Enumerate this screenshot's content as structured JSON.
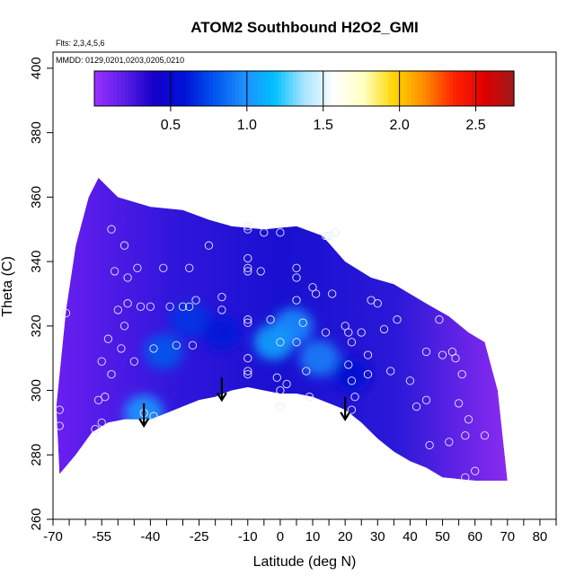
{
  "chart_data": {
    "type": "heatmap",
    "title": "ATOM2 Southbound H2O2_GMI",
    "flights_note": "Flts: 2,3,4,5,6",
    "dates_note": "MMDD: 0129,0201,0203,0205,0210",
    "xlabel": "Latitude (deg N)",
    "ylabel": "Theta (C)",
    "xlim": [
      -70,
      85
    ],
    "ylim": [
      260,
      405
    ],
    "x_ticks": [
      -70,
      -55,
      -40,
      -25,
      -10,
      0,
      10,
      20,
      30,
      40,
      50,
      60,
      70,
      80
    ],
    "x_tick_labels": [
      "-70",
      "-55",
      "-40",
      "-25",
      "-10",
      "0",
      "10",
      "20",
      "30",
      "40",
      "50",
      "60",
      "70",
      "80"
    ],
    "x_minor_ticks": [
      -65,
      -60,
      -50,
      -45,
      -35,
      -30,
      -20,
      -15,
      -5,
      5,
      15,
      25,
      35,
      45,
      55,
      65,
      75,
      85
    ],
    "y_ticks": [
      260,
      280,
      300,
      320,
      340,
      360,
      380,
      400
    ],
    "y_tick_labels": [
      "260",
      "280",
      "300",
      "320",
      "340",
      "360",
      "380",
      "400"
    ],
    "colorbar": {
      "range": [
        0,
        2.75
      ],
      "ticks": [
        0.5,
        1.0,
        1.5,
        2.0,
        2.5
      ],
      "tick_labels": [
        "0.5",
        "1.0",
        "1.5",
        "2.0",
        "2.5"
      ],
      "colors": [
        "#9b30ff",
        "#5a1ee6",
        "#1500c8",
        "#0011d8",
        "#0055ee",
        "#1e90ff",
        "#00bfff",
        "#a8e4ff",
        "#ffffff",
        "#ffffc0",
        "#ffd700",
        "#ff8c00",
        "#ff2400",
        "#e00000",
        "#a01a1a"
      ]
    },
    "field_polygon": [
      [
        -68,
        274
      ],
      [
        -63,
        280
      ],
      [
        -58,
        287
      ],
      [
        -53,
        290
      ],
      [
        -48,
        291
      ],
      [
        -44,
        291
      ],
      [
        -40,
        291
      ],
      [
        -35,
        293
      ],
      [
        -30,
        295
      ],
      [
        -25,
        297
      ],
      [
        -20,
        298
      ],
      [
        -15,
        300
      ],
      [
        -10,
        301
      ],
      [
        -5,
        300
      ],
      [
        0,
        299
      ],
      [
        5,
        299
      ],
      [
        10,
        298
      ],
      [
        15,
        296
      ],
      [
        20,
        294
      ],
      [
        25,
        290
      ],
      [
        30,
        285
      ],
      [
        35,
        281
      ],
      [
        40,
        278
      ],
      [
        45,
        276
      ],
      [
        50,
        273
      ],
      [
        60,
        272
      ],
      [
        70,
        272
      ],
      [
        67,
        300
      ],
      [
        63,
        315
      ],
      [
        58,
        318
      ],
      [
        52,
        323
      ],
      [
        45,
        327
      ],
      [
        35,
        333
      ],
      [
        28,
        335
      ],
      [
        20,
        340
      ],
      [
        13,
        348
      ],
      [
        5,
        351
      ],
      [
        -5,
        350
      ],
      [
        -15,
        351
      ],
      [
        -22,
        353
      ],
      [
        -30,
        356
      ],
      [
        -40,
        357
      ],
      [
        -50,
        360
      ],
      [
        -56,
        366
      ],
      [
        -59,
        360
      ],
      [
        -63,
        345
      ],
      [
        -66,
        325
      ],
      [
        -69,
        295
      ]
    ],
    "hotspots": [
      {
        "lat": -42,
        "theta": 293,
        "value": 1.05
      },
      {
        "lat": -36,
        "theta": 312,
        "value": 0.8
      },
      {
        "lat": -2,
        "theta": 315,
        "value": 1.1
      },
      {
        "lat": 4,
        "theta": 320,
        "value": 1.0
      },
      {
        "lat": 12,
        "theta": 310,
        "value": 0.95
      },
      {
        "lat": -28,
        "theta": 322,
        "value": 0.7
      },
      {
        "lat": 22,
        "theta": 305,
        "value": 0.55
      },
      {
        "lat": -18,
        "theta": 318,
        "value": 0.6
      }
    ],
    "samples": [
      [
        -68,
        289
      ],
      [
        -68,
        294
      ],
      [
        -66,
        324
      ],
      [
        -56,
        297
      ],
      [
        -54,
        298
      ],
      [
        -55,
        309
      ],
      [
        -53,
        316
      ],
      [
        -52,
        305
      ],
      [
        -57,
        288
      ],
      [
        -55,
        290
      ],
      [
        -49,
        313
      ],
      [
        -50,
        325
      ],
      [
        -48,
        320
      ],
      [
        -47,
        327
      ],
      [
        -47,
        335
      ],
      [
        -48,
        345
      ],
      [
        -51,
        337
      ],
      [
        -52,
        350
      ],
      [
        -44,
        338
      ],
      [
        -43,
        326
      ],
      [
        -40,
        326
      ],
      [
        -45,
        309
      ],
      [
        -42,
        293
      ],
      [
        -39,
        292
      ],
      [
        -39,
        313
      ],
      [
        -36,
        338
      ],
      [
        -34,
        326
      ],
      [
        -32,
        314
      ],
      [
        -30,
        326
      ],
      [
        -28,
        326
      ],
      [
        -28,
        338
      ],
      [
        -27,
        314
      ],
      [
        -26,
        328
      ],
      [
        -22,
        345
      ],
      [
        -18,
        325
      ],
      [
        -18,
        329
      ],
      [
        -10,
        351
      ],
      [
        -10,
        350
      ],
      [
        -5,
        349
      ],
      [
        0,
        349
      ],
      [
        -10,
        341
      ],
      [
        -10,
        338
      ],
      [
        -10,
        337
      ],
      [
        -6,
        337
      ],
      [
        -10,
        322
      ],
      [
        -10,
        321
      ],
      [
        -10,
        310
      ],
      [
        -10,
        306
      ],
      [
        -10,
        305
      ],
      [
        -3,
        322
      ],
      [
        0,
        315
      ],
      [
        -1,
        304
      ],
      [
        0,
        300
      ],
      [
        0,
        295
      ],
      [
        2,
        302
      ],
      [
        5,
        335
      ],
      [
        5,
        328
      ],
      [
        5,
        338
      ],
      [
        8,
        306
      ],
      [
        5,
        315
      ],
      [
        7,
        321
      ],
      [
        9,
        298
      ],
      [
        14,
        318
      ],
      [
        10,
        332
      ],
      [
        11,
        330
      ],
      [
        16,
        330
      ],
      [
        15,
        348
      ],
      [
        14,
        348
      ],
      [
        17,
        349
      ],
      [
        20,
        320
      ],
      [
        21,
        318
      ],
      [
        22,
        315
      ],
      [
        21,
        308
      ],
      [
        22,
        303
      ],
      [
        23,
        298
      ],
      [
        22,
        294
      ],
      [
        25,
        318
      ],
      [
        27,
        311
      ],
      [
        28,
        328
      ],
      [
        27,
        305
      ],
      [
        30,
        327
      ],
      [
        32,
        319
      ],
      [
        34,
        306
      ],
      [
        36,
        322
      ],
      [
        40,
        303
      ],
      [
        42,
        295
      ],
      [
        45,
        297
      ],
      [
        46,
        283
      ],
      [
        45,
        312
      ],
      [
        49,
        322
      ],
      [
        50,
        311
      ],
      [
        52,
        284
      ],
      [
        54,
        310
      ],
      [
        55,
        296
      ],
      [
        56,
        305
      ],
      [
        58,
        291
      ],
      [
        60,
        275
      ],
      [
        57,
        273
      ],
      [
        57,
        286
      ],
      [
        53,
        312
      ],
      [
        63,
        286
      ]
    ],
    "arrows": [
      {
        "lat": -42,
        "theta_top": 296,
        "theta_bottom": 289
      },
      {
        "lat": -18,
        "theta_top": 304,
        "theta_bottom": 297
      },
      {
        "lat": 20,
        "theta_top": 298,
        "theta_bottom": 291
      }
    ]
  }
}
